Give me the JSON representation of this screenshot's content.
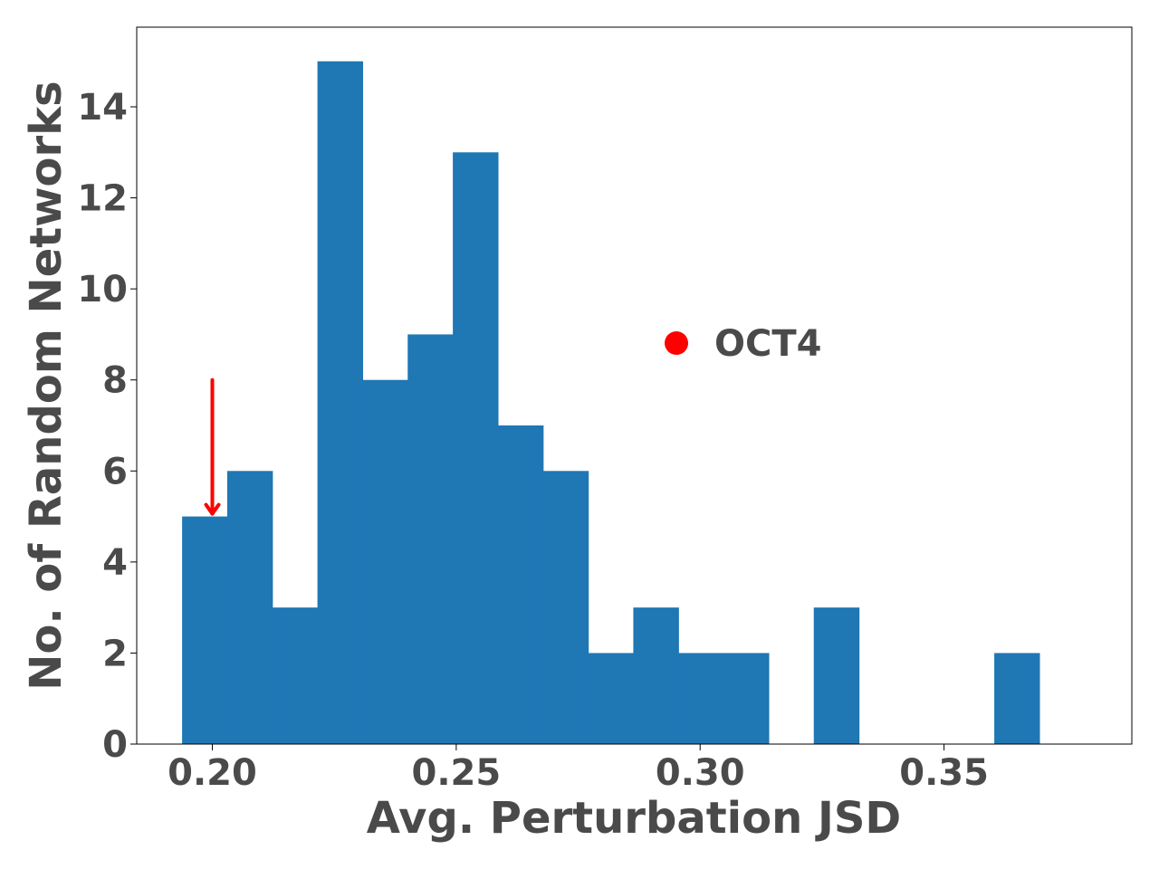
{
  "chart_data": {
    "type": "bar",
    "subtype": "histogram",
    "xlabel": "Avg. Perturbation JSD",
    "ylabel": "No. of Random Networks",
    "xlim": [
      0.1845,
      0.3885
    ],
    "ylim": [
      0,
      15.75
    ],
    "xticks": [
      0.2,
      0.25,
      0.3,
      0.35
    ],
    "xtick_labels": [
      "0.20",
      "0.25",
      "0.30",
      "0.35"
    ],
    "yticks": [
      0,
      2,
      4,
      6,
      8,
      10,
      12,
      14
    ],
    "ytick_labels": [
      "0",
      "2",
      "4",
      "6",
      "8",
      "10",
      "12",
      "14"
    ],
    "bin_start": 0.1938,
    "bin_width": 0.00925,
    "counts": [
      5,
      6,
      3,
      15,
      8,
      9,
      13,
      7,
      6,
      2,
      3,
      2,
      2,
      0,
      3,
      0,
      0,
      0,
      2
    ],
    "bar_color": "#1f77b4",
    "legend": {
      "label": "OCT4",
      "marker_color": "#ff0000",
      "placement": "center"
    },
    "annotation": {
      "type": "arrow",
      "color": "#ff0000",
      "x": 0.2,
      "y_from": 8,
      "y_to": 5
    },
    "grid": false
  }
}
